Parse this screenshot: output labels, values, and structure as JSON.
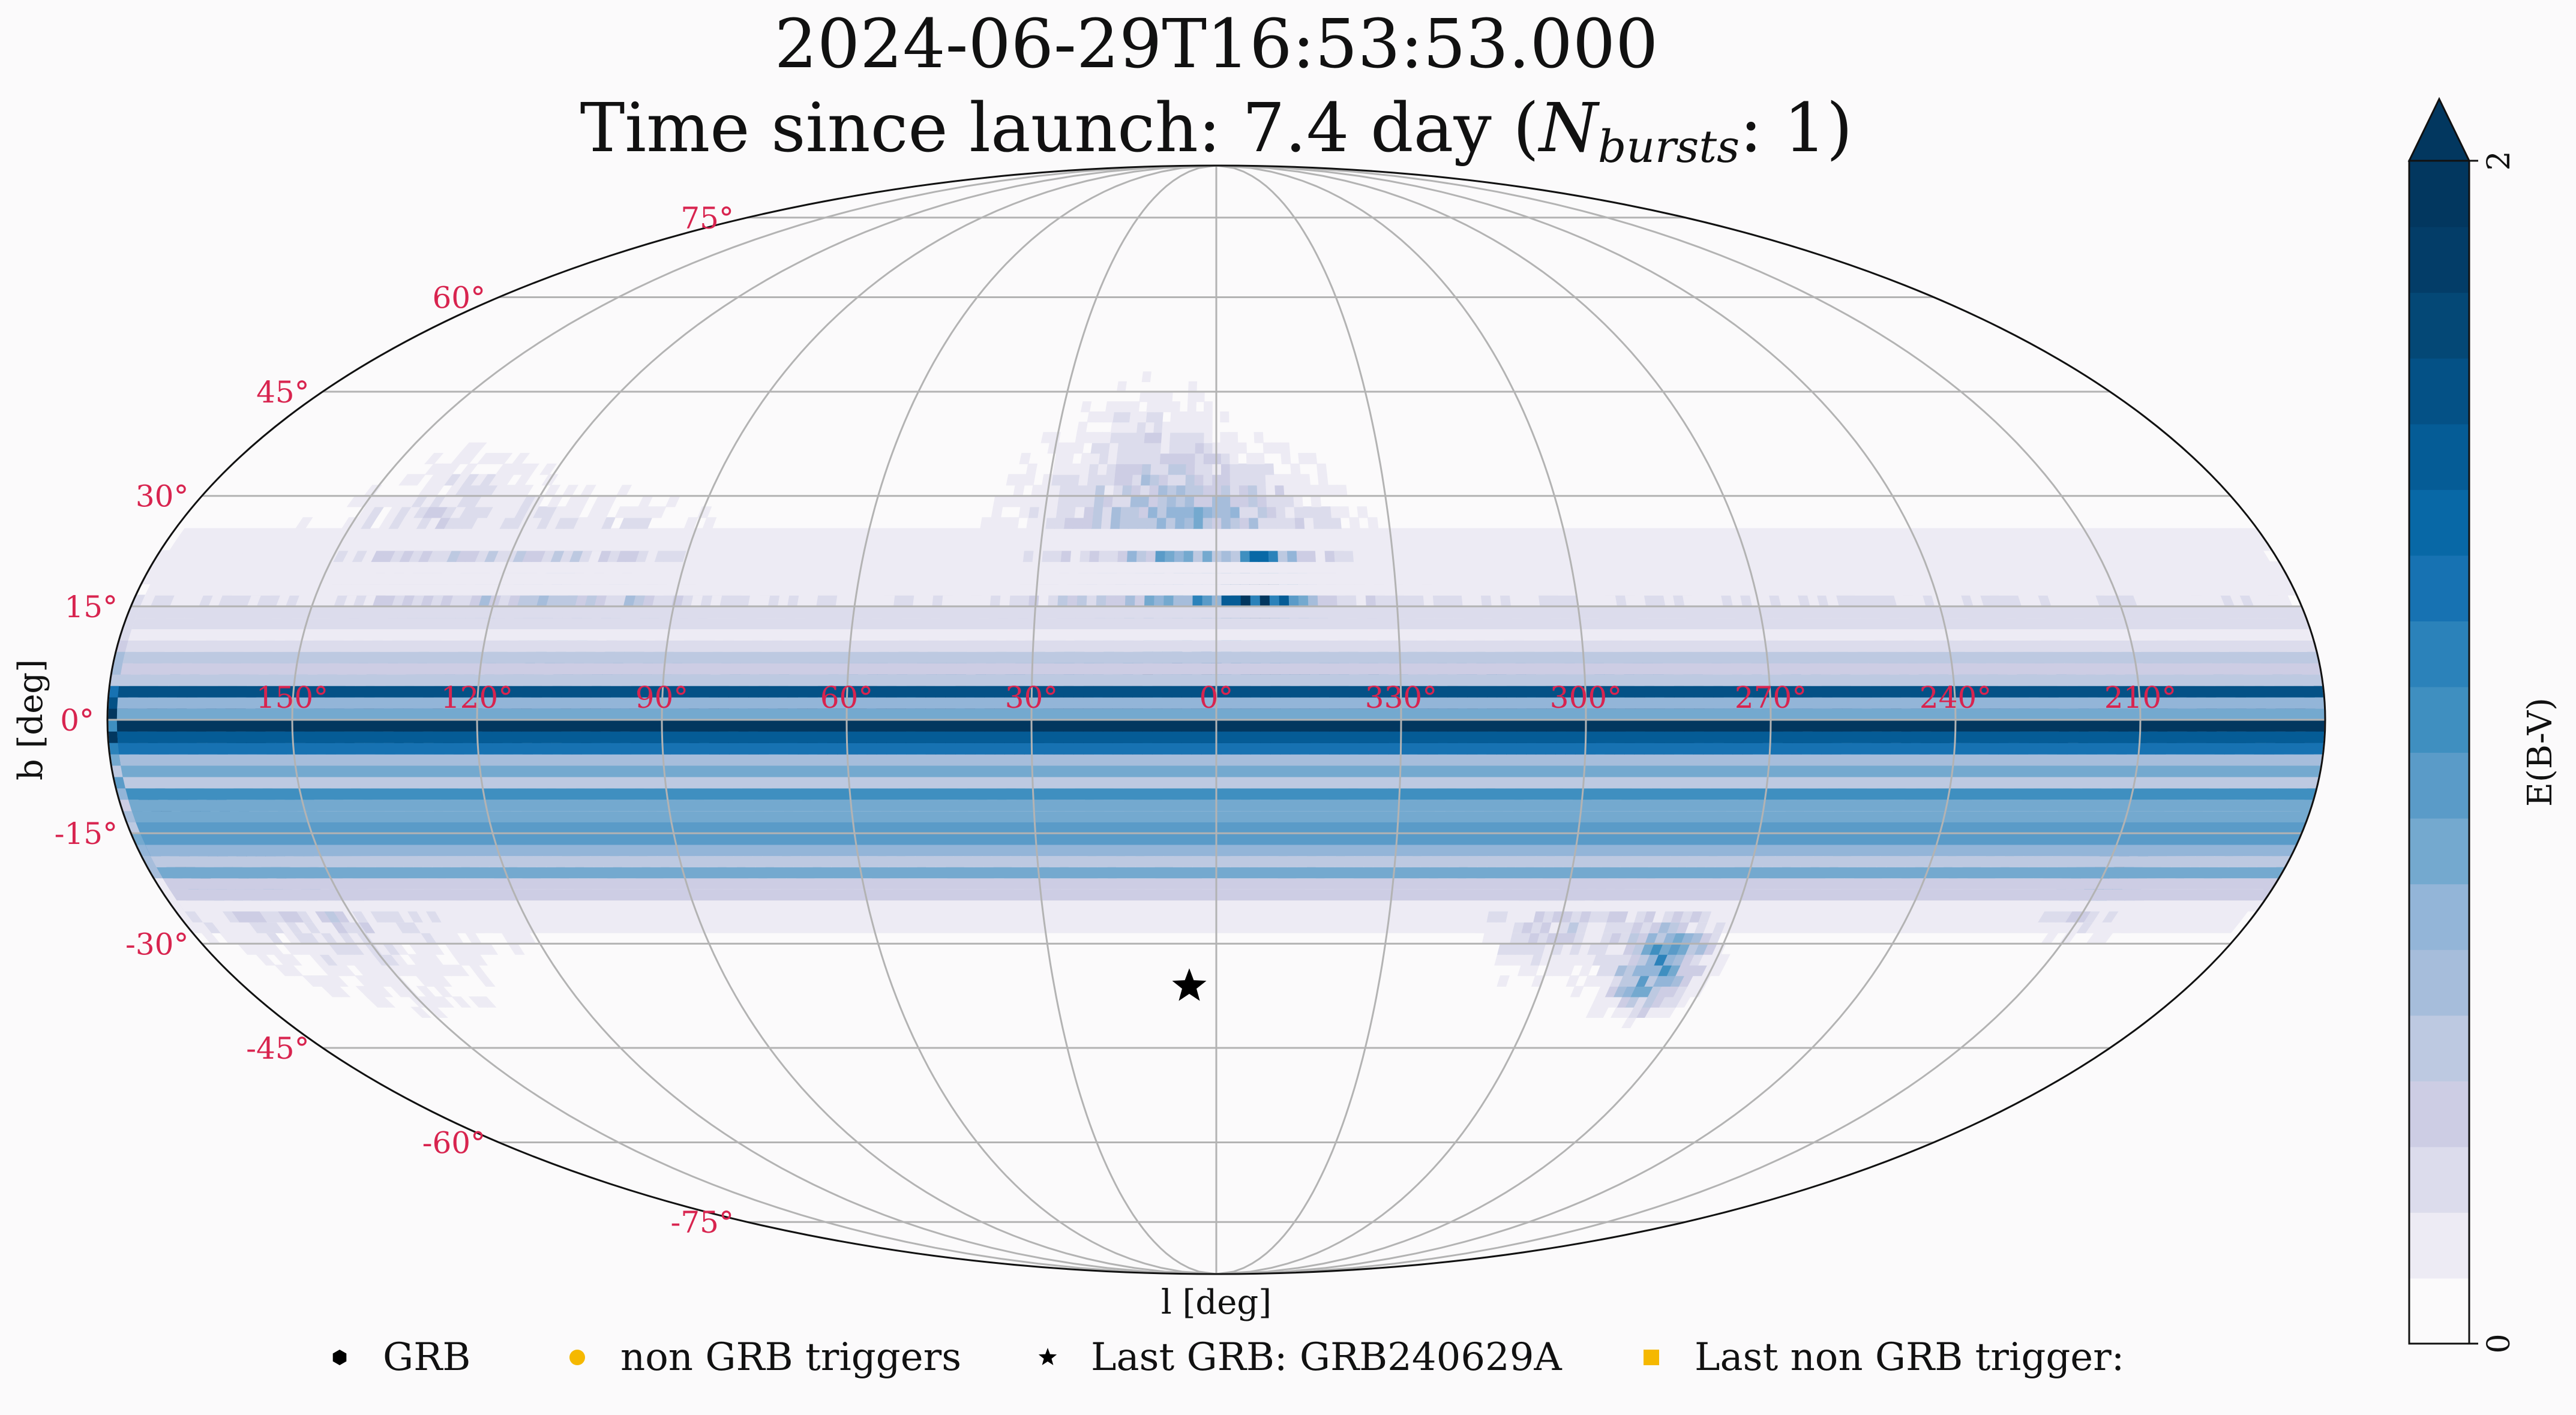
{
  "chart_data": {
    "type": "heatmap",
    "projection": "mollweide",
    "title": {
      "timestamp": "2024-06-29T16:53:53.000",
      "launch_prefix": "Time since launch: 7.4 day (",
      "n_symbol": "N",
      "n_subscript": "bursts",
      "launch_suffix": ": 1)"
    },
    "xlabel": "l [deg]",
    "ylabel": "b [deg]",
    "longitude_ticks": [
      {
        "value": 150,
        "label": "150°"
      },
      {
        "value": 120,
        "label": "120°"
      },
      {
        "value": 90,
        "label": "90°"
      },
      {
        "value": 60,
        "label": "60°"
      },
      {
        "value": 30,
        "label": "30°"
      },
      {
        "value": 0,
        "label": "0°"
      },
      {
        "value": 330,
        "label": "330°"
      },
      {
        "value": 300,
        "label": "300°"
      },
      {
        "value": 270,
        "label": "270°"
      },
      {
        "value": 240,
        "label": "240°"
      },
      {
        "value": 210,
        "label": "210°"
      }
    ],
    "latitude_ticks": [
      {
        "value": 75,
        "label": "75°"
      },
      {
        "value": 60,
        "label": "60°"
      },
      {
        "value": 45,
        "label": "45°"
      },
      {
        "value": 30,
        "label": "30°"
      },
      {
        "value": 15,
        "label": "15°"
      },
      {
        "value": 0,
        "label": "0°"
      },
      {
        "value": -15,
        "label": "-15°"
      },
      {
        "value": -30,
        "label": "-30°"
      },
      {
        "value": -45,
        "label": "-45°"
      },
      {
        "value": -60,
        "label": "-60°"
      },
      {
        "value": -75,
        "label": "-75°"
      }
    ],
    "grid": true,
    "colorbar": {
      "label": "E(B-V)",
      "vmin": 0,
      "vmax": 2,
      "tick_labels": [
        "0",
        "2"
      ],
      "extend": "max",
      "colors": [
        "#fbfafb",
        "#edebf4",
        "#dcdcec",
        "#cdcde4",
        "#bdc9e1",
        "#a6bddb",
        "#93b5d8",
        "#74a9cf",
        "#5a9bc8",
        "#3f8fc0",
        "#2b82ba",
        "#1772b2",
        "#0868a6",
        "#055c96",
        "#045186",
        "#044876",
        "#033d68",
        "#02375f"
      ]
    },
    "points": [
      {
        "series": "Last GRB",
        "l": 5,
        "b": -36
      }
    ],
    "legend": {
      "placement": "bottom",
      "items": [
        {
          "marker": "hexagon",
          "color": "#000000",
          "label": "GRB"
        },
        {
          "marker": "circle",
          "color": "#f5b800",
          "label": "non GRB triggers"
        },
        {
          "marker": "star",
          "color": "#000000",
          "label": "Last GRB: GRB240629A"
        },
        {
          "marker": "square",
          "color": "#f5b800",
          "label": "Last non GRB trigger:"
        }
      ]
    }
  }
}
